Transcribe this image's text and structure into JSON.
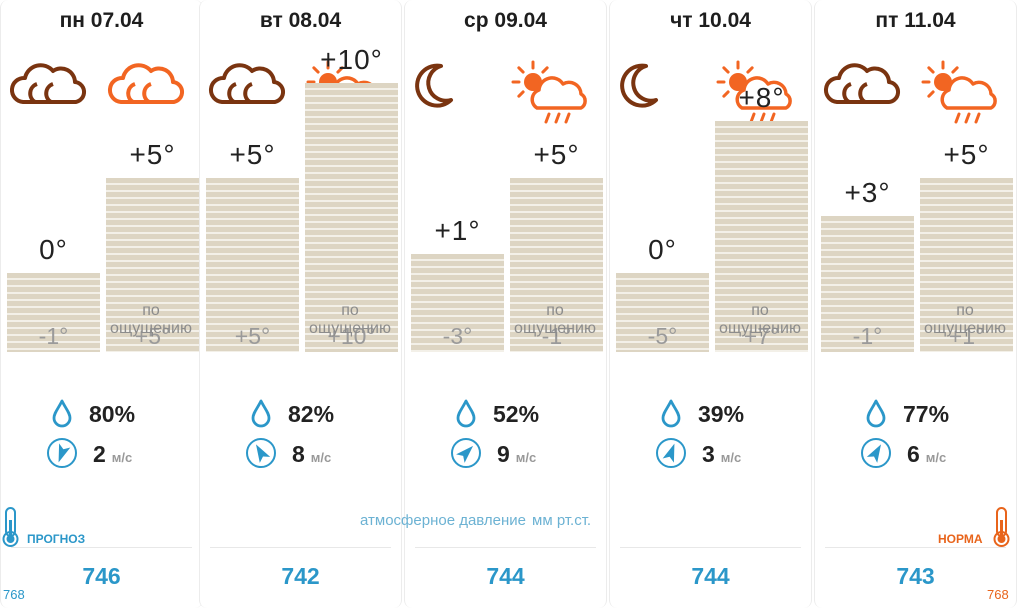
{
  "labels": {
    "feels_like": "по ощущению",
    "wind_unit": "м/с",
    "pressure_title": "атмосферное давление",
    "pressure_unit": "мм рт.ст.",
    "forecast_label": "ПРОГНОЗ",
    "norm_label": "НОРМА",
    "forecast_value": "768",
    "norm_value": "768"
  },
  "colors": {
    "night": "#7a3410",
    "day": "#f26522",
    "bars": "#ddd5c3",
    "accent": "#2b97c9",
    "norm": "#e8641b"
  },
  "days": [
    {
      "date": "пн 07.04",
      "night_icon": "cloudy-icon",
      "day_icon": "cloudy-icon",
      "night_temp": "0°",
      "day_temp": "+5°",
      "night_feel": "-1°",
      "day_feel": "+5°",
      "humidity": "80%",
      "wind": "2",
      "wind_dir_deg": 200,
      "pressure": "746"
    },
    {
      "date": "вт 08.04",
      "night_icon": "cloudy-icon",
      "day_icon": "sun-cloud-rain-icon",
      "night_temp": "+5°",
      "day_temp": "+10°",
      "night_feel": "+5°",
      "day_feel": "+10°",
      "humidity": "82%",
      "wind": "8",
      "wind_dir_deg": 330,
      "pressure": "742"
    },
    {
      "date": "ср 09.04",
      "night_icon": "moon-icon",
      "day_icon": "sun-cloud-rain-icon",
      "night_temp": "+1°",
      "day_temp": "+5°",
      "night_feel": "-3°",
      "day_feel": "-1°",
      "humidity": "52%",
      "wind": "9",
      "wind_dir_deg": 45,
      "pressure": "744"
    },
    {
      "date": "чт 10.04",
      "night_icon": "moon-icon",
      "day_icon": "sun-cloud-rain-icon",
      "night_temp": "0°",
      "day_temp": "+8°",
      "night_feel": "-5°",
      "day_feel": "+7°",
      "humidity": "39%",
      "wind": "3",
      "wind_dir_deg": 20,
      "pressure": "744"
    },
    {
      "date": "пт 11.04",
      "night_icon": "cloudy-icon",
      "day_icon": "sun-cloud-rain-icon",
      "night_temp": "+3°",
      "day_temp": "+5°",
      "night_feel": "-1°",
      "day_feel": "+1°",
      "humidity": "77%",
      "wind": "6",
      "wind_dir_deg": 30,
      "pressure": "743"
    }
  ]
}
